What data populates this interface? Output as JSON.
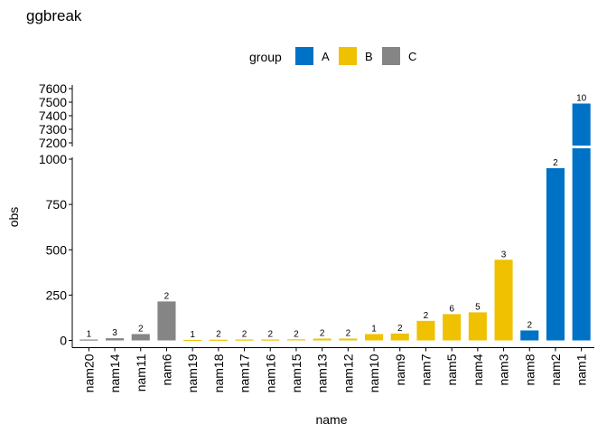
{
  "chart_data": {
    "type": "bar",
    "title": "ggbreak",
    "xlabel": "name",
    "ylabel": "obs",
    "legend": {
      "title": "group",
      "position": "top",
      "entries": [
        {
          "name": "A",
          "color": "#0072C6"
        },
        {
          "name": "B",
          "color": "#F0C100"
        },
        {
          "name": "C",
          "color": "#858585"
        }
      ]
    },
    "y_break": {
      "lower_range": [
        0,
        1000
      ],
      "upper_range": [
        7200,
        7600
      ]
    },
    "y_ticks_lower": [
      0,
      250,
      500,
      750,
      1000
    ],
    "y_ticks_upper": [
      7200,
      7300,
      7400,
      7500,
      7600
    ],
    "y_tick_labels_lower": [
      "0",
      "250",
      "500",
      "750",
      "1000"
    ],
    "y_tick_labels_upper": [
      "7200",
      "7300",
      "7400",
      "7500",
      "7600"
    ],
    "categories": [
      "nam20",
      "nam14",
      "nam11",
      "nam6",
      "nam19",
      "nam18",
      "nam17",
      "nam16",
      "nam15",
      "nam13",
      "nam12",
      "nam10",
      "nam9",
      "nam7",
      "nam5",
      "nam4",
      "nam3",
      "nam8",
      "nam2",
      "nam1"
    ],
    "groups": [
      "C",
      "C",
      "C",
      "C",
      "B",
      "B",
      "B",
      "B",
      "B",
      "B",
      "B",
      "B",
      "B",
      "B",
      "B",
      "B",
      "B",
      "A",
      "A",
      "A"
    ],
    "values": [
      5,
      12,
      35,
      215,
      3,
      4,
      5,
      5,
      6,
      10,
      10,
      35,
      38,
      108,
      145,
      155,
      445,
      55,
      950,
      7490
    ],
    "labels": [
      "1",
      "3",
      "2",
      "2",
      "1",
      "2",
      "2",
      "2",
      "2",
      "2",
      "2",
      "1",
      "2",
      "2",
      "6",
      "5",
      "3",
      "2",
      "2",
      "10"
    ]
  }
}
